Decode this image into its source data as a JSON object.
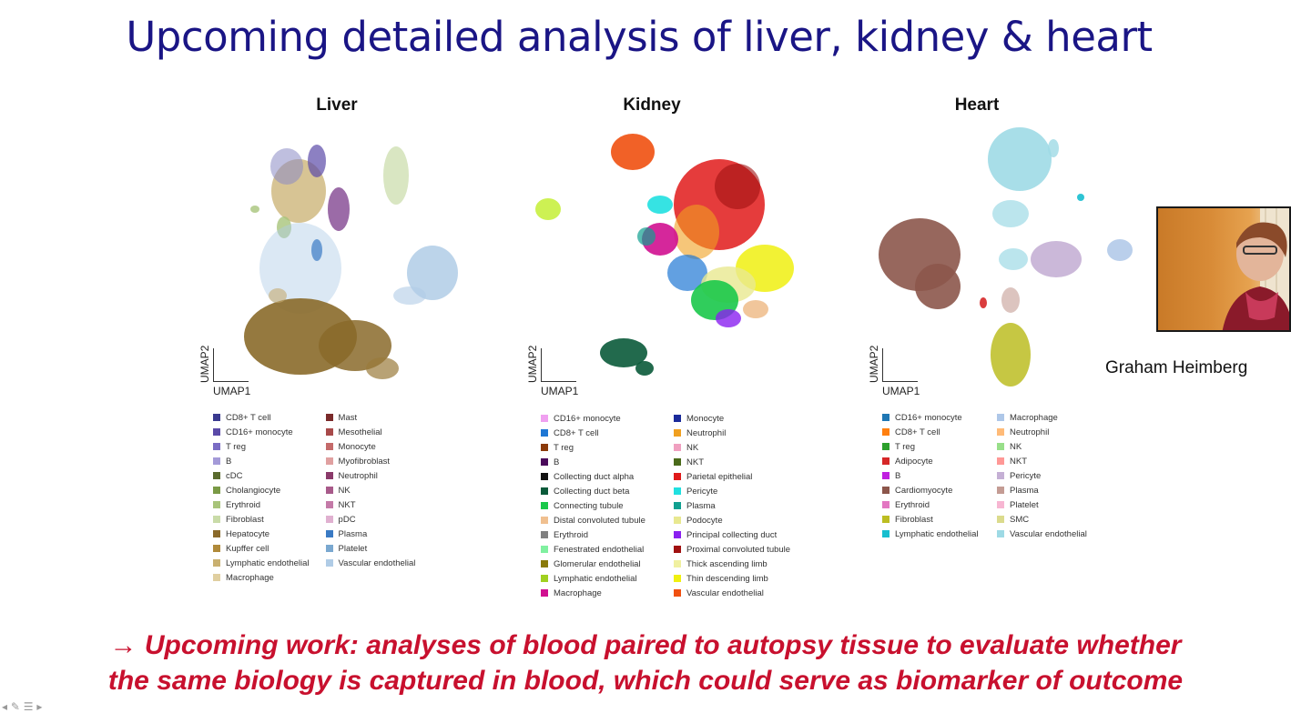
{
  "title": "Upcoming detailed analysis of liver, kidney & heart",
  "panels": {
    "liver": {
      "title": "Liver",
      "xlabel": "UMAP1",
      "ylabel": "UMAP2",
      "legend_left": [
        {
          "label": "CD8+ T cell",
          "color": "#3a3a8f"
        },
        {
          "label": "CD16+ monocyte",
          "color": "#5b4aa8"
        },
        {
          "label": "T reg",
          "color": "#7a6cc4"
        },
        {
          "label": "B",
          "color": "#a49ad8"
        },
        {
          "label": "cDC",
          "color": "#5a6b2e"
        },
        {
          "label": "Cholangiocyte",
          "color": "#7a9a45"
        },
        {
          "label": "Erythroid",
          "color": "#a8c47a"
        },
        {
          "label": "Fibroblast",
          "color": "#c9dba8"
        },
        {
          "label": "Hepatocyte",
          "color": "#8a6a2a"
        },
        {
          "label": "Kupffer cell",
          "color": "#b08a3a"
        },
        {
          "label": "Lymphatic endothelial",
          "color": "#c9b070"
        },
        {
          "label": "Macrophage",
          "color": "#e0cfa0"
        }
      ],
      "legend_right": [
        {
          "label": "Mast",
          "color": "#7a2a2a"
        },
        {
          "label": "Mesothelial",
          "color": "#a84a4a"
        },
        {
          "label": "Monocyte",
          "color": "#c46a6a"
        },
        {
          "label": "Myofibroblast",
          "color": "#e0a0a0"
        },
        {
          "label": "Neutrophil",
          "color": "#8a3a6a"
        },
        {
          "label": "NK",
          "color": "#a85a8a"
        },
        {
          "label": "NKT",
          "color": "#c47aa8"
        },
        {
          "label": "pDC",
          "color": "#e0b0d0"
        },
        {
          "label": "Plasma",
          "color": "#3a7ac4"
        },
        {
          "label": "Platelet",
          "color": "#7aa8d0"
        },
        {
          "label": "Vascular endothelial",
          "color": "#b0cce6"
        }
      ]
    },
    "kidney": {
      "title": "Kidney",
      "xlabel": "UMAP1",
      "ylabel": "UMAP2",
      "legend_left": [
        {
          "label": "CD16+ monocyte",
          "color": "#f0a0f0"
        },
        {
          "label": "CD8+ T cell",
          "color": "#1f77d4"
        },
        {
          "label": "T reg",
          "color": "#8b3a0a"
        },
        {
          "label": "B",
          "color": "#4a0a5a"
        },
        {
          "label": "Collecting duct alpha",
          "color": "#111111"
        },
        {
          "label": "Collecting duct beta",
          "color": "#0a5a3a"
        },
        {
          "label": "Connecting tubule",
          "color": "#1ac84a"
        },
        {
          "label": "Distal convoluted tubule",
          "color": "#f0c090"
        },
        {
          "label": "Erythroid",
          "color": "#808080"
        },
        {
          "label": "Fenestrated endothelial",
          "color": "#80f0a0"
        },
        {
          "label": "Glomerular endothelial",
          "color": "#8a7a0a"
        },
        {
          "label": "Lymphatic endothelial",
          "color": "#a0d020"
        },
        {
          "label": "Macrophage",
          "color": "#d01090"
        }
      ],
      "legend_right": [
        {
          "label": "Monocyte",
          "color": "#1a2a9a"
        },
        {
          "label": "Neutrophil",
          "color": "#f0a020"
        },
        {
          "label": "NK",
          "color": "#f0a0c0"
        },
        {
          "label": "NKT",
          "color": "#4a6a1a"
        },
        {
          "label": "Parietal epithelial",
          "color": "#e01a1a"
        },
        {
          "label": "Pericyte",
          "color": "#20e0e0"
        },
        {
          "label": "Plasma",
          "color": "#10a090"
        },
        {
          "label": "Podocyte",
          "color": "#e8e890"
        },
        {
          "label": "Principal collecting duct",
          "color": "#8a20f0"
        },
        {
          "label": "Proximal convoluted tubule",
          "color": "#a01010"
        },
        {
          "label": "Thick ascending limb",
          "color": "#f0f0a0"
        },
        {
          "label": "Thin descending limb",
          "color": "#f0f010"
        },
        {
          "label": "Vascular endothelial",
          "color": "#f05010"
        }
      ]
    },
    "heart": {
      "title": "Heart",
      "xlabel": "UMAP1",
      "ylabel": "UMAP2",
      "legend_left": [
        {
          "label": "CD16+ monocyte",
          "color": "#1f77b4"
        },
        {
          "label": "CD8+ T cell",
          "color": "#ff7f0e"
        },
        {
          "label": "T reg",
          "color": "#2ca02c"
        },
        {
          "label": "Adipocyte",
          "color": "#d62728"
        },
        {
          "label": "B",
          "color": "#c020e0"
        },
        {
          "label": "Cardiomyocyte",
          "color": "#8c564b"
        },
        {
          "label": "Erythroid",
          "color": "#e377c2"
        },
        {
          "label": "Fibroblast",
          "color": "#bcbd22"
        },
        {
          "label": "Lymphatic endothelial",
          "color": "#17becf"
        }
      ],
      "legend_right": [
        {
          "label": "Macrophage",
          "color": "#aec7e8"
        },
        {
          "label": "Neutrophil",
          "color": "#ffbb78"
        },
        {
          "label": "NK",
          "color": "#98df8a"
        },
        {
          "label": "NKT",
          "color": "#ff9896"
        },
        {
          "label": "Pericyte",
          "color": "#c5b0d5"
        },
        {
          "label": "Plasma",
          "color": "#c49c94"
        },
        {
          "label": "Platelet",
          "color": "#f7b6d2"
        },
        {
          "label": "SMC",
          "color": "#dbdb8d"
        },
        {
          "label": "Vascular endothelial",
          "color": "#9edae5"
        }
      ]
    }
  },
  "speaker": "Graham Heimberg",
  "conclusion_line1": "→ Upcoming work: analyses of blood paired to autopsy tissue to evaluate whether",
  "conclusion_line2": "the same biology is captured in blood, which could  serve as biomarker of outcome"
}
